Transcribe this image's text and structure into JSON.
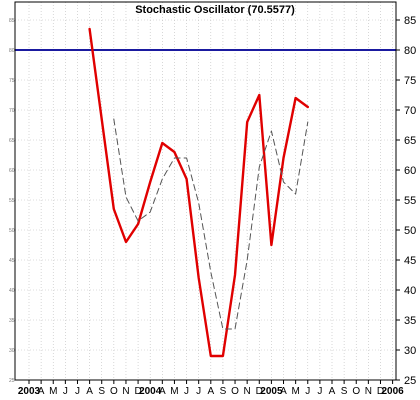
{
  "chart_data": {
    "type": "line",
    "title": "Stochastic Oscillator (70.5577)",
    "xlabel": "",
    "ylabel": "",
    "ylim": [
      25,
      87
    ],
    "yticks": [
      25,
      30,
      35,
      40,
      45,
      50,
      55,
      60,
      65,
      70,
      75,
      80,
      85
    ],
    "grid": true,
    "x_tick_labels": [
      {
        "label": "2003",
        "bold": true
      },
      {
        "label": "A",
        "bold": false
      },
      {
        "label": "M",
        "bold": false
      },
      {
        "label": "J",
        "bold": false
      },
      {
        "label": "J",
        "bold": false
      },
      {
        "label": "A",
        "bold": false
      },
      {
        "label": "S",
        "bold": false
      },
      {
        "label": "O",
        "bold": false
      },
      {
        "label": "N",
        "bold": false
      },
      {
        "label": "D",
        "bold": false
      },
      {
        "label": "2004",
        "bold": true
      },
      {
        "label": "A",
        "bold": false
      },
      {
        "label": "M",
        "bold": false
      },
      {
        "label": "J",
        "bold": false
      },
      {
        "label": "J",
        "bold": false
      },
      {
        "label": "A",
        "bold": false
      },
      {
        "label": "S",
        "bold": false
      },
      {
        "label": "O",
        "bold": false
      },
      {
        "label": "N",
        "bold": false
      },
      {
        "label": "D",
        "bold": false
      },
      {
        "label": "2005",
        "bold": true
      },
      {
        "label": "A",
        "bold": false
      },
      {
        "label": "M",
        "bold": false
      },
      {
        "label": "J",
        "bold": false
      },
      {
        "label": "J",
        "bold": false
      },
      {
        "label": "A",
        "bold": false
      },
      {
        "label": "S",
        "bold": false
      },
      {
        "label": "O",
        "bold": false
      },
      {
        "label": "N",
        "bold": false
      },
      {
        "label": "D",
        "bold": false
      },
      {
        "label": "2006",
        "bold": true
      }
    ],
    "reference_line": {
      "value": 80,
      "color": "#1a1aa0"
    },
    "series": [
      {
        "style": "solid",
        "color": "#e00000",
        "x": [
          "2003-08-31",
          "2003-10-31",
          "2003-11-30",
          "2003-12-31",
          "2004-01-31",
          "2004-02-29",
          "2004-03-31",
          "2004-04-30",
          "2004-05-31",
          "2004-06-30",
          "2004-07-31",
          "2004-08-31",
          "2004-09-30",
          "2004-10-31",
          "2004-11-30",
          "2004-12-31",
          "2005-01-31",
          "2005-02-28"
        ],
        "values": [
          83.5,
          53.5,
          48,
          51,
          58,
          64.5,
          63,
          58.5,
          42,
          29,
          29,
          42.5,
          68,
          72.5,
          47.5,
          62,
          72,
          70.5
        ]
      },
      {
        "style": "dashed",
        "color": "#555555",
        "x": [
          "2003-10-31",
          "2003-11-30",
          "2003-12-31",
          "2004-01-31",
          "2004-02-29",
          "2004-03-31",
          "2004-04-30",
          "2004-05-31",
          "2004-06-30",
          "2004-07-31",
          "2004-08-31",
          "2004-09-30",
          "2004-10-31",
          "2004-11-30",
          "2004-12-31",
          "2005-01-31",
          "2005-02-28"
        ],
        "values": [
          68.5,
          55.5,
          51.5,
          53,
          58.5,
          62,
          62,
          54.5,
          43,
          33.5,
          33.5,
          45,
          60.5,
          66.5,
          58,
          56,
          68
        ]
      }
    ]
  }
}
